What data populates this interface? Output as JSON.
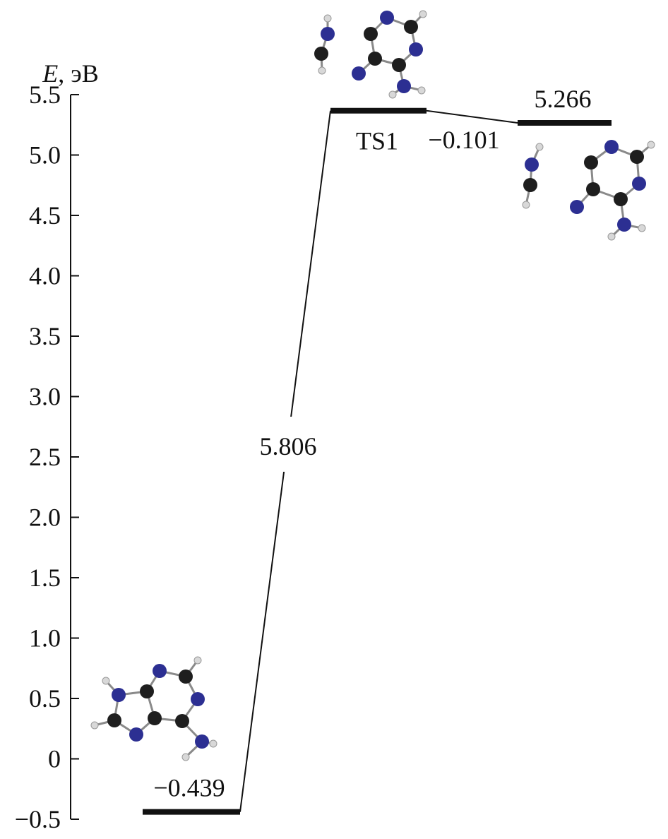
{
  "chart_data": {
    "type": "energy-diagram",
    "ylabel_symbol": "E",
    "ylabel_unit": ", эВ",
    "ylim": [
      -0.5,
      5.5
    ],
    "yticks": [
      "5.5",
      "5.0",
      "4.5",
      "4.0",
      "3.5",
      "3.0",
      "2.5",
      "2.0",
      "1.5",
      "1.0",
      "0.5",
      "0",
      "−0.5"
    ],
    "levels": [
      {
        "energy": -0.439,
        "label": "−0.439"
      },
      {
        "energy": 5.367,
        "label": "TS1"
      },
      {
        "energy": 5.266,
        "label": "5.266"
      }
    ],
    "transitions": [
      {
        "from": 0,
        "to": 1,
        "label": "5.806"
      },
      {
        "from": 1,
        "to": 2,
        "label": "−0.101"
      }
    ]
  },
  "colors": {
    "carbon": "#1e1e1e",
    "nitrogen": "#2c2f92",
    "hydrogen": "#d8d8d8",
    "bond": "#8a8a8a"
  }
}
